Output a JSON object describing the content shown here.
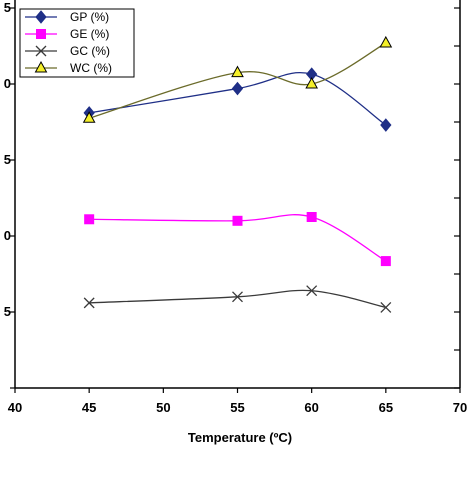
{
  "chart_data": {
    "type": "line",
    "xlabel": "Temperature (ºC)",
    "x_ticks": [
      40,
      45,
      50,
      55,
      60,
      65,
      70
    ],
    "xlim": [
      40,
      70
    ],
    "ylim": [
      0,
      5
    ],
    "y_ticks": [
      0,
      1,
      2,
      3,
      4,
      5
    ],
    "y_tick_labels": [
      "",
      "5",
      "0",
      "5",
      "0",
      "5"
    ],
    "right_axis_ticks": 10,
    "grid": false,
    "legend_position": "top-left",
    "smooth": true,
    "series": [
      {
        "name": "GP  (%)",
        "color": "#1f2f87",
        "marker": "diamond",
        "x": [
          45,
          55,
          60,
          65
        ],
        "y": [
          3.62,
          3.94,
          4.13,
          3.46
        ]
      },
      {
        "name": "GE  (%)",
        "color": "#ff00ff",
        "marker": "square",
        "x": [
          45,
          55,
          60,
          65
        ],
        "y": [
          2.22,
          2.2,
          2.25,
          1.67
        ]
      },
      {
        "name": "GC (%)",
        "color": "#3a3a3a",
        "marker": "x",
        "x": [
          45,
          55,
          60,
          65
        ],
        "y": [
          1.12,
          1.2,
          1.28,
          1.06
        ]
      },
      {
        "name": "WC (%)",
        "color": "#6b6b2a",
        "marker": "triangle",
        "x": [
          45,
          55,
          60,
          65
        ],
        "y": [
          3.55,
          4.15,
          4.0,
          4.54
        ]
      }
    ]
  }
}
